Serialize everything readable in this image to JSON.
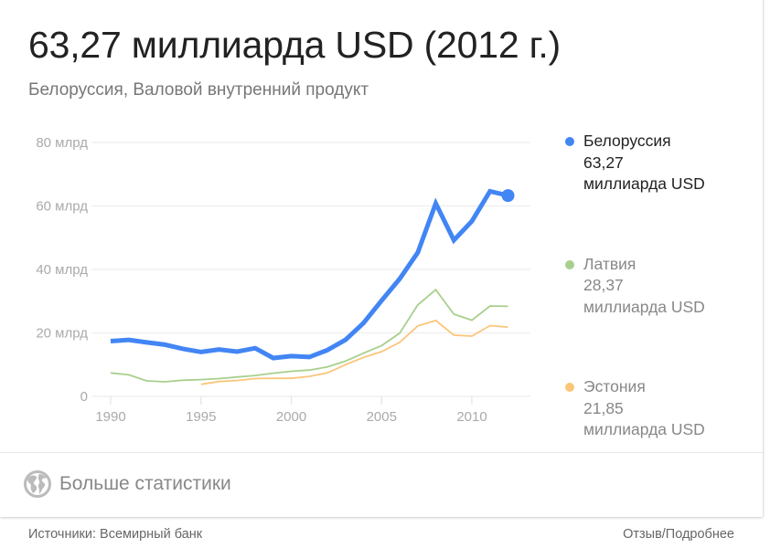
{
  "header": {
    "title": "63,27 миллиарда USD (2012 г.)",
    "subtitle": "Белоруссия, Валовой внутренний продукт"
  },
  "chart_data": {
    "type": "line",
    "title": "63,27 миллиарда USD (2012 г.)",
    "subtitle": "Белоруссия, Валовой внутренний продукт",
    "xlabel": "",
    "ylabel": "",
    "y_unit": "млрд USD",
    "ylim": [
      0,
      80
    ],
    "xlim": [
      1990,
      2012
    ],
    "grid": true,
    "legend_position": "right",
    "y_ticks": [
      "0",
      "20 млрд",
      "40 млрд",
      "60 млрд",
      "80 млрд"
    ],
    "y_tick_values": [
      0,
      20,
      40,
      60,
      80
    ],
    "x_ticks": [
      "1990",
      "1995",
      "2000",
      "2005",
      "2010"
    ],
    "x_tick_values": [
      1990,
      1995,
      2000,
      2005,
      2010
    ],
    "x": [
      1990,
      1991,
      1992,
      1993,
      1994,
      1995,
      1996,
      1997,
      1998,
      1999,
      2000,
      2001,
      2002,
      2003,
      2004,
      2005,
      2006,
      2007,
      2008,
      2009,
      2010,
      2011,
      2012
    ],
    "series": [
      {
        "name": "Белоруссия",
        "color": "#4285f4",
        "highlighted": true,
        "latest_label": "63,27",
        "unit_label": "миллиарда USD",
        "values": [
          17.4,
          17.8,
          17.0,
          16.3,
          15.0,
          14.0,
          14.8,
          14.1,
          15.2,
          12.1,
          12.7,
          12.4,
          14.6,
          17.8,
          23.1,
          30.2,
          37.0,
          45.3,
          60.8,
          49.2,
          55.2,
          64.6,
          63.27
        ]
      },
      {
        "name": "Латвия",
        "color": "#a8d08d",
        "highlighted": false,
        "latest_label": "28,37",
        "unit_label": "миллиарда USD",
        "values": [
          7.4,
          6.8,
          4.9,
          4.6,
          5.1,
          5.3,
          5.6,
          6.1,
          6.6,
          7.3,
          7.9,
          8.3,
          9.3,
          11.1,
          13.6,
          16.0,
          19.9,
          28.8,
          33.6,
          25.9,
          24.0,
          28.5,
          28.37
        ]
      },
      {
        "name": "Эстония",
        "color": "#fbc57a",
        "highlighted": false,
        "latest_label": "21,85",
        "unit_label": "миллиарда USD",
        "values": [
          null,
          null,
          null,
          null,
          null,
          3.8,
          4.7,
          5.0,
          5.6,
          5.7,
          5.7,
          6.3,
          7.4,
          10.0,
          12.3,
          14.1,
          17.0,
          22.2,
          23.9,
          19.3,
          19.0,
          22.3,
          21.85
        ]
      }
    ]
  },
  "legend": [
    {
      "name": "Белоруссия",
      "value": "63,27",
      "unit": "миллиарда USD",
      "color": "#4285f4"
    },
    {
      "name": "Латвия",
      "value": "28,37",
      "unit": "миллиарда USD",
      "color": "#a8d08d"
    },
    {
      "name": "Эстония",
      "value": "21,85",
      "unit": "миллиарда USD",
      "color": "#fbc57a"
    }
  ],
  "more_stats": {
    "label": "Больше статистики",
    "icon": "globe-icon"
  },
  "footer": {
    "source": "Источники: Всемирный банк",
    "feedback": "Отзыв/Подробнее"
  }
}
